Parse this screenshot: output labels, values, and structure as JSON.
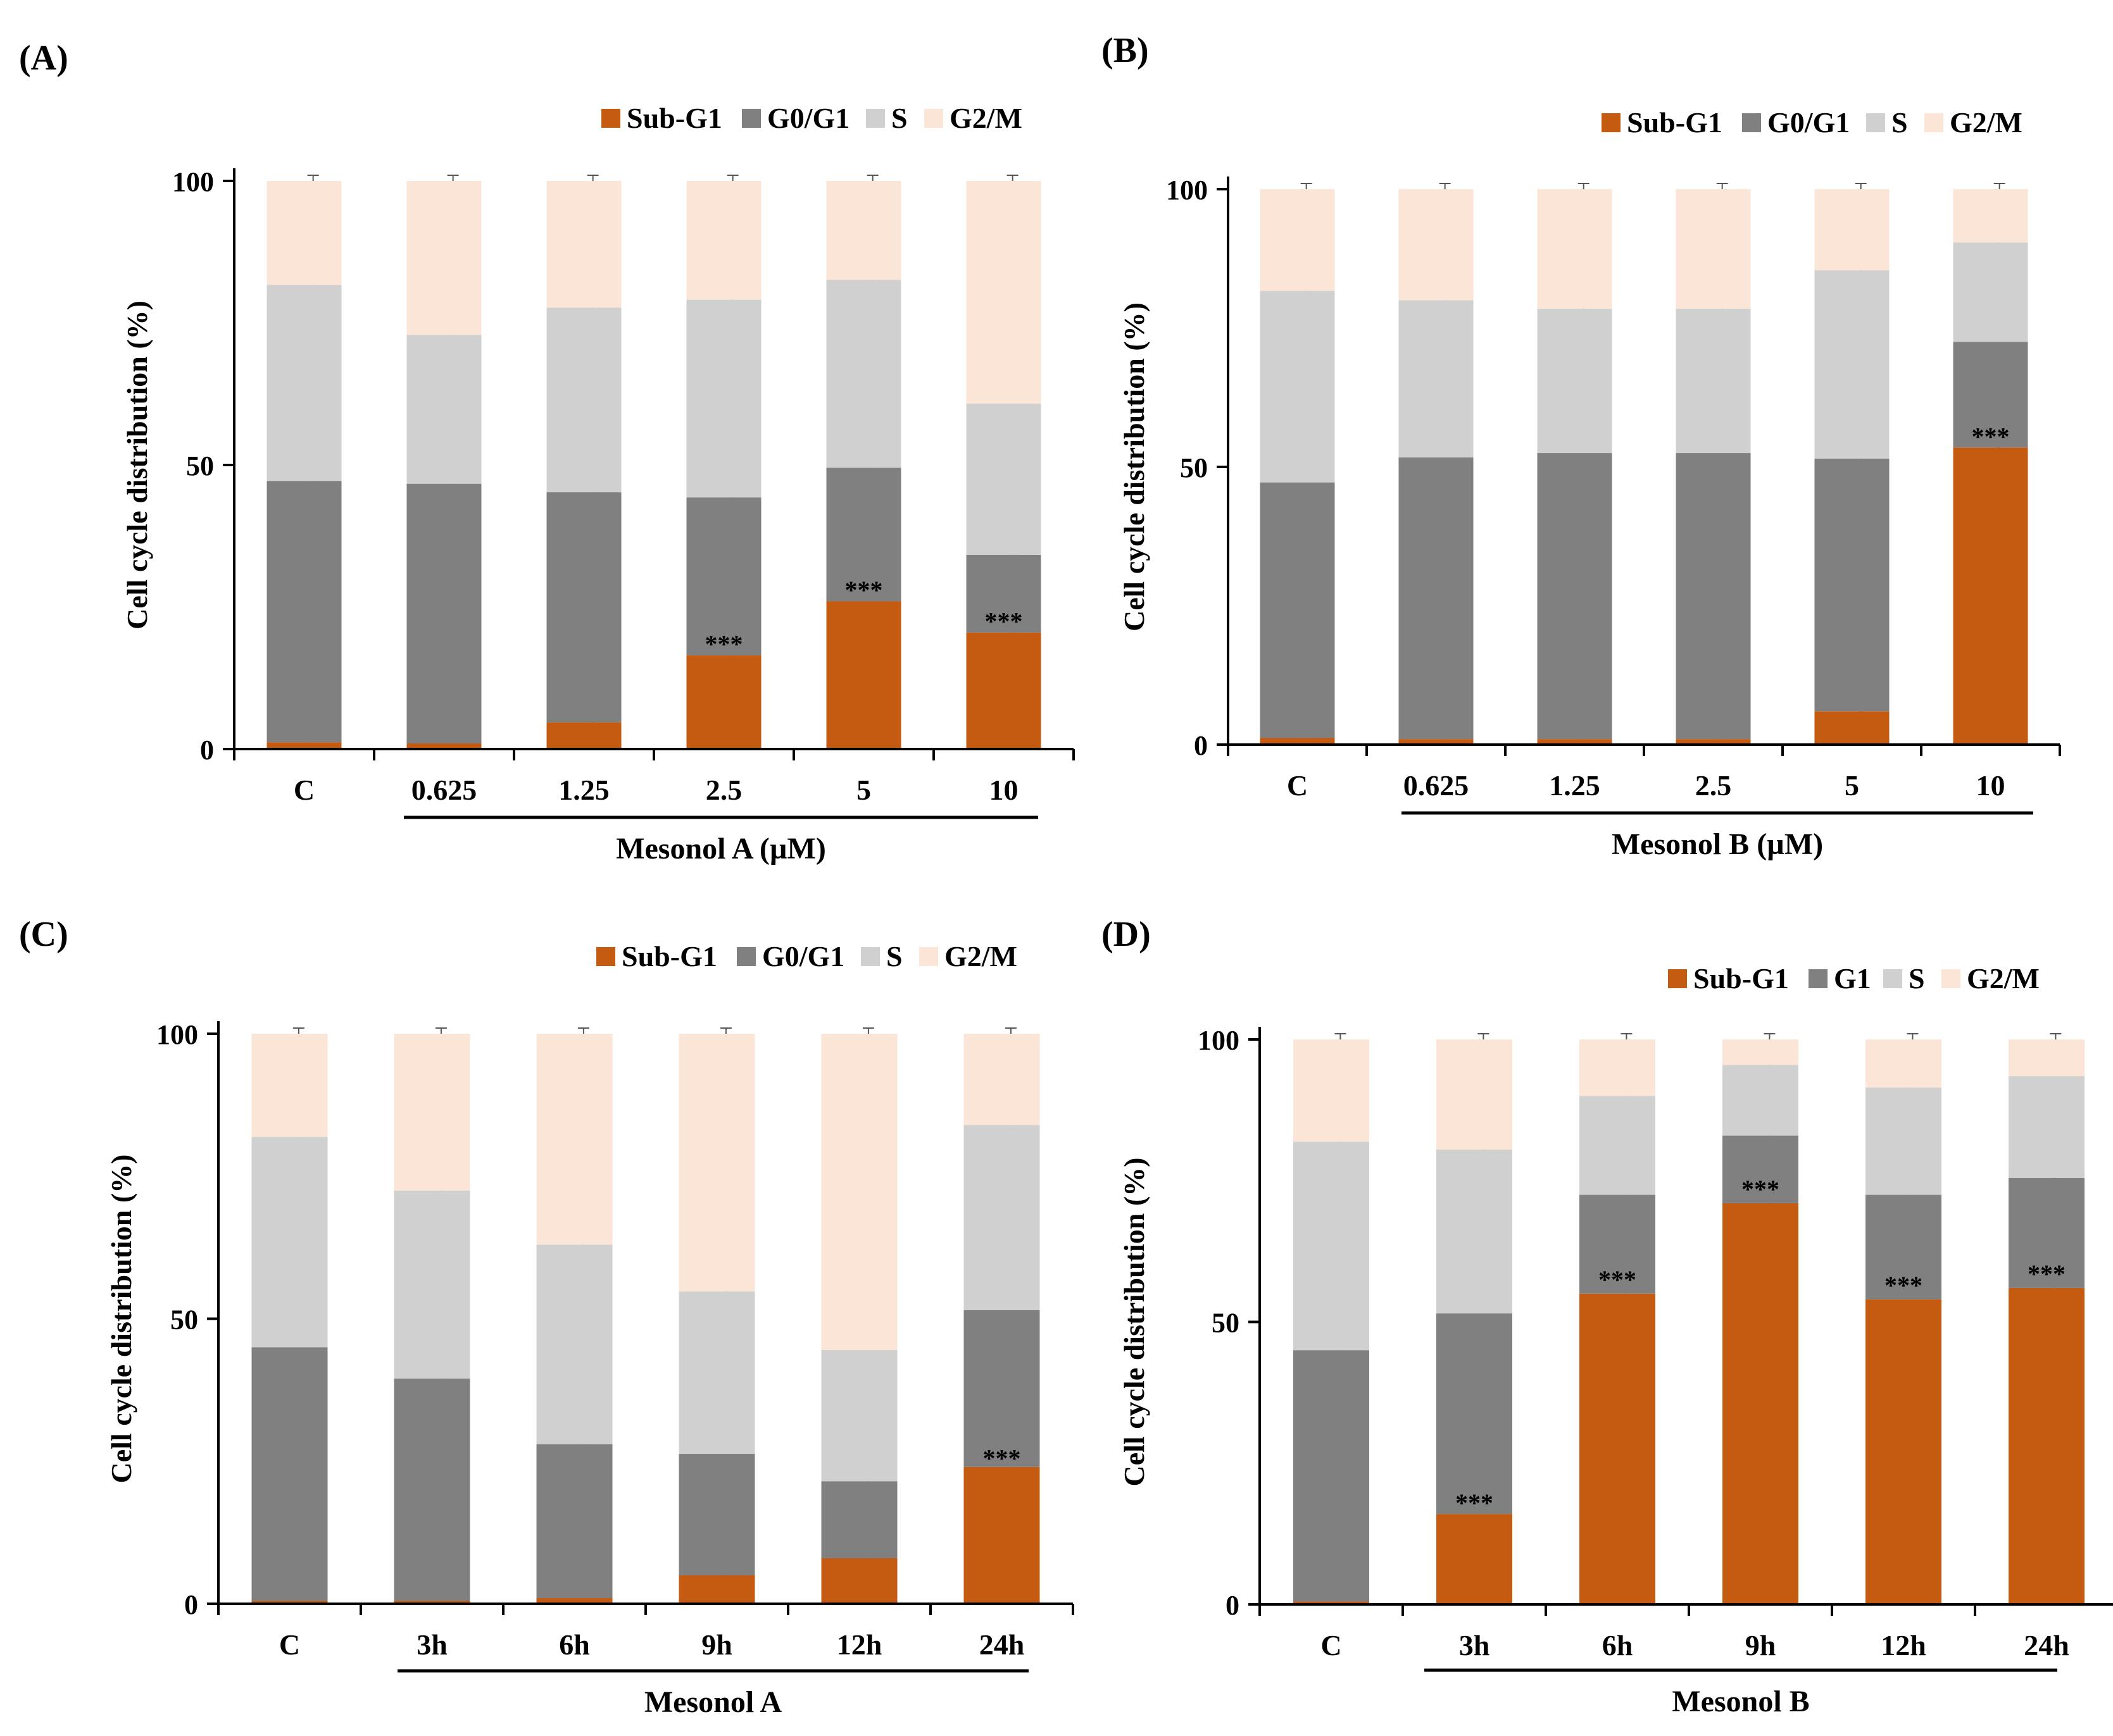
{
  "colors": {
    "Sub-G1": "#c55a11",
    "G0/G1": "#808080",
    "G1": "#808080",
    "S": "#d0d0d0",
    "G2/M": "#fbe5d6",
    "axis": "#000000"
  },
  "chart_data": [
    {
      "type": "bar",
      "stacked": true,
      "panel_label": "(A)",
      "ylabel": "Cell cycle distribution (%)",
      "xlabel": "Mesonol A (µM)",
      "ylim": [
        0,
        100
      ],
      "yticks": [
        "0",
        "50",
        "100"
      ],
      "categories": [
        "C",
        "0.625",
        "1.25",
        "2.5",
        "5",
        "10"
      ],
      "legend": [
        "Sub-G1",
        "G0/G1",
        "S",
        "G2/M"
      ],
      "series": [
        {
          "name": "Sub-G1",
          "values": [
            1.2,
            1.0,
            4.7,
            16.5,
            26.0,
            20.5
          ]
        },
        {
          "name": "G0/G1",
          "values": [
            46.0,
            45.7,
            40.5,
            27.8,
            23.5,
            13.7
          ]
        },
        {
          "name": "S",
          "values": [
            34.5,
            26.2,
            32.5,
            34.8,
            33.1,
            26.6
          ]
        },
        {
          "name": "G2/M",
          "values": [
            18.3,
            27.1,
            22.3,
            20.9,
            17.4,
            39.2
          ]
        }
      ],
      "annotations": [
        {
          "category": "2.5",
          "text": "***",
          "level": 19
        },
        {
          "category": "5",
          "text": "***",
          "level": 28.5
        },
        {
          "category": "10",
          "text": "***",
          "level": 23
        }
      ]
    },
    {
      "type": "bar",
      "stacked": true,
      "panel_label": "(B)",
      "ylabel": "Cell cycle distribution (%)",
      "xlabel": "Mesonol B (µM)",
      "ylim": [
        0,
        100
      ],
      "yticks": [
        "0",
        "50",
        "100"
      ],
      "categories": [
        "C",
        "0.625",
        "1.25",
        "2.5",
        "5",
        "10"
      ],
      "legend": [
        "Sub-G1",
        "G0/G1",
        "S",
        "G2/M"
      ],
      "series": [
        {
          "name": "Sub-G1",
          "values": [
            1.2,
            1.0,
            1.0,
            1.0,
            6.0,
            53.5
          ]
        },
        {
          "name": "G0/G1",
          "values": [
            46.0,
            50.7,
            51.5,
            51.5,
            45.5,
            19.0
          ]
        },
        {
          "name": "S",
          "values": [
            34.5,
            28.3,
            26.0,
            26.0,
            33.9,
            17.9
          ]
        },
        {
          "name": "G2/M",
          "values": [
            18.3,
            20.0,
            21.5,
            21.5,
            14.6,
            9.6
          ]
        }
      ],
      "annotations": [
        {
          "category": "10",
          "text": "***",
          "level": 56
        }
      ]
    },
    {
      "type": "bar",
      "stacked": true,
      "panel_label": "(C)",
      "ylabel": "Cell cycle distribution (%)",
      "xlabel": "Mesonol A",
      "ylim": [
        0,
        100
      ],
      "yticks": [
        "0",
        "50",
        "100"
      ],
      "categories": [
        "C",
        "3h",
        "6h",
        "9h",
        "12h",
        "24h"
      ],
      "legend": [
        "Sub-G1",
        "G0/G1",
        "S",
        "G2/M"
      ],
      "series": [
        {
          "name": "Sub-G1",
          "values": [
            0.5,
            0.5,
            1.0,
            5.0,
            8.0,
            24.0
          ]
        },
        {
          "name": "G0/G1",
          "values": [
            44.5,
            39.0,
            27.0,
            21.3,
            13.5,
            27.5
          ]
        },
        {
          "name": "S",
          "values": [
            36.9,
            33.0,
            35.0,
            28.5,
            23.0,
            32.5
          ]
        },
        {
          "name": "G2/M",
          "values": [
            18.1,
            27.5,
            37.0,
            45.2,
            55.5,
            16.0
          ]
        }
      ],
      "annotations": [
        {
          "category": "24h",
          "text": "***",
          "level": 26
        }
      ]
    },
    {
      "type": "bar",
      "stacked": true,
      "panel_label": "(D)",
      "ylabel": "Cell cycle distribution (%)",
      "xlabel": "Mesonol B",
      "ylim": [
        0,
        100
      ],
      "yticks": [
        "0",
        "50",
        "100"
      ],
      "categories": [
        "C",
        "3h",
        "6h",
        "9h",
        "12h",
        "24h"
      ],
      "legend": [
        "Sub-G1",
        "G1",
        "S",
        "G2/M"
      ],
      "series": [
        {
          "name": "Sub-G1",
          "values": [
            0.5,
            16.0,
            55.0,
            71.0,
            54.0,
            56.0
          ]
        },
        {
          "name": "G1",
          "values": [
            44.5,
            35.5,
            17.5,
            12.0,
            18.5,
            19.5
          ]
        },
        {
          "name": "S",
          "values": [
            36.9,
            29.0,
            17.5,
            12.5,
            19.0,
            18.0
          ]
        },
        {
          "name": "G2/M",
          "values": [
            18.1,
            19.5,
            10.0,
            4.5,
            8.5,
            6.5
          ]
        }
      ],
      "annotations": [
        {
          "category": "3h",
          "text": "***",
          "level": 18.5
        },
        {
          "category": "6h",
          "text": "***",
          "level": 58
        },
        {
          "category": "9h",
          "text": "***",
          "level": 74
        },
        {
          "category": "12h",
          "text": "***",
          "level": 57
        },
        {
          "category": "24h",
          "text": "***",
          "level": 59
        }
      ]
    }
  ]
}
